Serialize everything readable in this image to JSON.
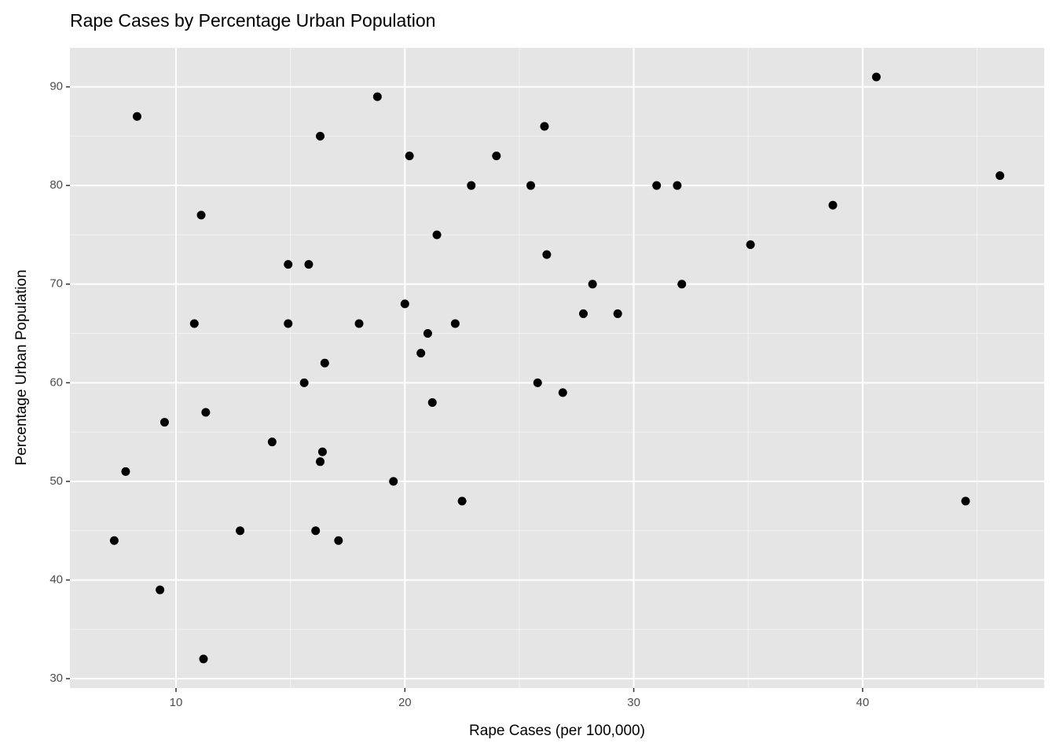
{
  "chart_data": {
    "type": "scatter",
    "title": "Rape Cases by Percentage Urban Population",
    "x_label": "Rape Cases (per 100,000)",
    "y_label": "Percentage Urban Population",
    "color": "#000000",
    "background": "#e5e5e5",
    "grid": true,
    "x": [
      21.2,
      44.5,
      31.0,
      19.5,
      40.6,
      38.7,
      11.1,
      15.8,
      31.9,
      25.8,
      20.2,
      14.2,
      24.0,
      21.0,
      11.3,
      18.0,
      16.3,
      22.2,
      7.8,
      27.8,
      16.3,
      35.1,
      14.9,
      17.1,
      28.2,
      16.4,
      16.5,
      46.0,
      9.5,
      18.8,
      32.1,
      26.1,
      16.1,
      7.3,
      21.4,
      20.0,
      29.3,
      14.9,
      8.3,
      22.5,
      12.8,
      26.9,
      25.5,
      22.9,
      11.2,
      20.7,
      26.2,
      9.3,
      10.8,
      15.6
    ],
    "y": [
      58,
      48,
      80,
      50,
      91,
      78,
      77,
      72,
      80,
      60,
      83,
      54,
      83,
      65,
      57,
      66,
      52,
      66,
      51,
      67,
      85,
      74,
      66,
      44,
      70,
      53,
      62,
      81,
      56,
      89,
      70,
      86,
      45,
      44,
      75,
      68,
      67,
      72,
      87,
      48,
      45,
      59,
      80,
      80,
      32,
      63,
      73,
      39,
      66,
      60
    ],
    "xlim": [
      5.365,
      47.935
    ],
    "ylim": [
      29.05,
      93.95
    ],
    "xticks": [
      10,
      20,
      30,
      40
    ],
    "yticks": [
      30,
      40,
      50,
      60,
      70,
      80,
      90
    ],
    "minor_xticks": [
      15,
      25,
      35,
      45
    ],
    "minor_yticks": [
      35,
      45,
      55,
      65,
      75,
      85
    ]
  }
}
